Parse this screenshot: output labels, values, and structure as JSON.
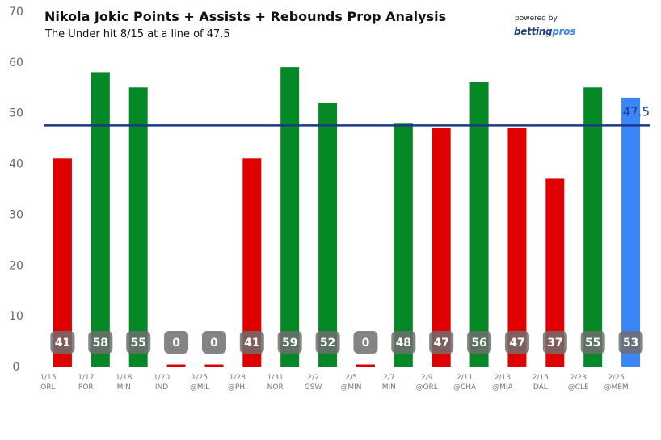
{
  "header": {
    "title": "Nikola Jokic Points + Assists + Rebounds Prop Analysis",
    "subtitle": "The Under hit 8/15 at a line of 47.5",
    "powered_by": "powered by",
    "brand_main": "betting",
    "brand_accent": "pros"
  },
  "colors": {
    "over": "#058826",
    "under": "#e00000",
    "upcoming": "#3b86f7",
    "line": "#1a3a85",
    "badge": "#6e6e6e"
  },
  "chart_data": {
    "type": "bar",
    "title": "Nikola Jokic Points + Assists + Rebounds Prop Analysis",
    "subtitle": "The Under hit 8/15 at a line of 47.5",
    "categories": [
      "1/15 ORL",
      "1/17 POR",
      "1/18 MIN",
      "1/20 IND",
      "1/25 @MIL",
      "1/28 @PHI",
      "1/31 NOR",
      "2/2 GSW",
      "2/5 @MIN",
      "2/7 MIN",
      "2/9 @ORL",
      "2/11 @CHA",
      "2/13 @MIA",
      "2/15 DAL",
      "2/23 @CLE",
      "2/25 @MEM"
    ],
    "dates": [
      "1/15",
      "1/17",
      "1/18",
      "1/20",
      "1/25",
      "1/28",
      "1/31",
      "2/2",
      "2/5",
      "2/7",
      "2/9",
      "2/11",
      "2/13",
      "2/15",
      "2/23",
      "2/25"
    ],
    "opponents": [
      "ORL",
      "POR",
      "MIN",
      "IND",
      "@MIL",
      "@PHI",
      "NOR",
      "GSW",
      "@MIN",
      "MIN",
      "@ORL",
      "@CHA",
      "@MIA",
      "DAL",
      "@CLE",
      "@MEM"
    ],
    "values": [
      41,
      58,
      55,
      0,
      0,
      41,
      59,
      52,
      0,
      48,
      47,
      56,
      47,
      37,
      55,
      53
    ],
    "bar_colors": [
      "under",
      "over",
      "over",
      "under",
      "under",
      "under",
      "over",
      "over",
      "under",
      "over",
      "under",
      "over",
      "under",
      "under",
      "over",
      "upcoming"
    ],
    "prop_line": 47.5,
    "prop_line_label": "47.5",
    "ylim": [
      0,
      70
    ],
    "yticks": [
      0,
      10,
      20,
      30,
      40,
      50,
      60,
      70
    ],
    "grid": false,
    "legend": "none"
  }
}
